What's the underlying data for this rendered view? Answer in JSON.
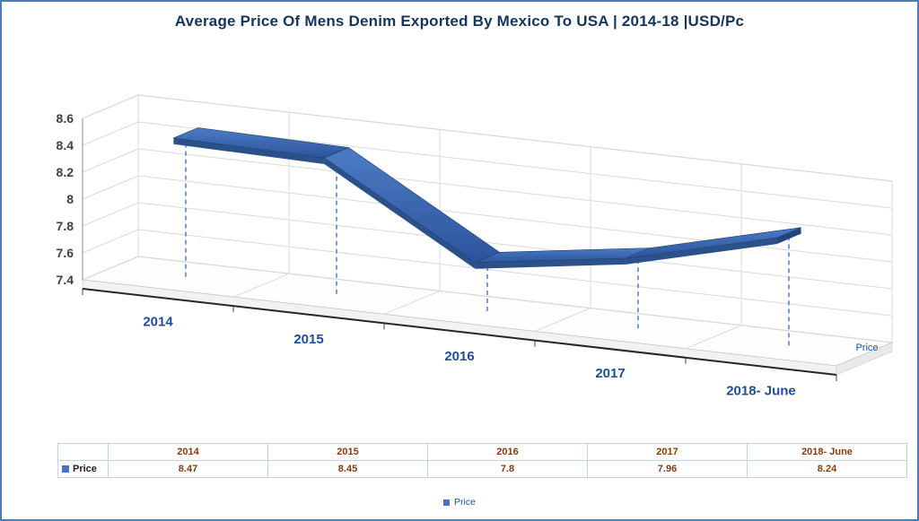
{
  "title": "Average Price Of Mens Denim Exported By Mexico To USA | 2014-18 |USD/Pc",
  "chart_data": {
    "type": "line",
    "style": "3d-ribbon",
    "categories": [
      "2014",
      "2015",
      "2016",
      "2017",
      "2018- June"
    ],
    "series": [
      {
        "name": "Price",
        "values": [
          8.47,
          8.45,
          7.8,
          7.96,
          8.24
        ]
      }
    ],
    "ylim": [
      7.4,
      8.6
    ],
    "ytick_step": 0.2,
    "ytick_labels": [
      "7.4",
      "7.6",
      "7.8",
      "8",
      "8.2",
      "8.4",
      "8.6"
    ],
    "series_axis_label": "Price",
    "grid": true,
    "legend_position": "bottom",
    "colors": {
      "ribbon_top": "#4C7BC4",
      "ribbon_bottom": "#2C549C",
      "ribbon_edge": "#2B5189",
      "ribbon_cap": "#24457C",
      "drop_line": "#4472C4",
      "category_label": "#1f4e99",
      "value_label": "#404040",
      "gridline": "#d9d9d9"
    }
  },
  "data_table": {
    "header": [
      "2014",
      "2015",
      "2016",
      "2017",
      "2018- June"
    ],
    "rows": [
      {
        "label": "Price",
        "values": [
          "8.47",
          "8.45",
          "7.8",
          "7.96",
          "8.24"
        ]
      }
    ]
  },
  "legend": {
    "items": [
      {
        "label": "Price",
        "color": "#4472c4"
      }
    ]
  }
}
